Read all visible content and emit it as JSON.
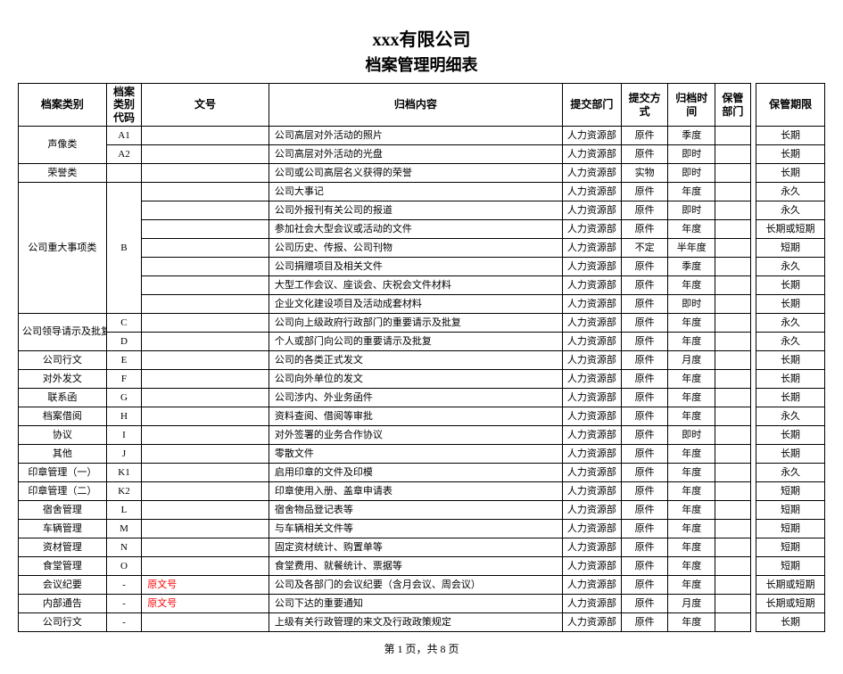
{
  "title": "xxx有限公司",
  "subtitle": "档案管理明细表",
  "headers": {
    "category": "档案类别",
    "code": "档案类别代码",
    "docno": "文号",
    "content": "归档内容",
    "dept": "提交部门",
    "method": "提交方式",
    "time": "归档时间",
    "keep": "保管部门",
    "period": "保管期限"
  },
  "rows": [
    {
      "category": "声像类",
      "cat_rowspan": 2,
      "code": "A1",
      "docno": "",
      "content": "公司高层对外活动的照片",
      "dept": "人力资源部",
      "method": "原件",
      "time": "季度",
      "keep": "",
      "period": "长期"
    },
    {
      "code": "A2",
      "docno": "",
      "content": "公司高层对外活动的光盘",
      "dept": "人力资源部",
      "method": "原件",
      "time": "即时",
      "keep": "",
      "period": "长期"
    },
    {
      "category": "荣誉类",
      "cat_rowspan": 1,
      "code": "",
      "docno": "",
      "content": "公司或公司高层名义获得的荣誉",
      "dept": "人力资源部",
      "method": "实物",
      "time": "即时",
      "keep": "",
      "period": "长期"
    },
    {
      "category": "公司重大事项类",
      "cat_rowspan": 7,
      "code": "B",
      "code_rowspan": 7,
      "docno": "",
      "content": "公司大事记",
      "dept": "人力资源部",
      "method": "原件",
      "time": "年度",
      "keep": "",
      "period": "永久"
    },
    {
      "docno": "",
      "content": "公司外报刊有关公司的报道",
      "dept": "人力资源部",
      "method": "原件",
      "time": "即时",
      "keep": "",
      "period": "永久"
    },
    {
      "docno": "",
      "content": "参加社会大型会议或活动的文件",
      "dept": "人力资源部",
      "method": "原件",
      "time": "年度",
      "keep": "",
      "period": "长期或短期"
    },
    {
      "docno": "",
      "content": "公司历史、传报、公司刊物",
      "dept": "人力资源部",
      "method": "不定",
      "time": "半年度",
      "keep": "",
      "period": "短期"
    },
    {
      "docno": "",
      "content": "公司捐赠项目及相关文件",
      "dept": "人力资源部",
      "method": "原件",
      "time": "季度",
      "keep": "",
      "period": "永久"
    },
    {
      "docno": "",
      "content": "大型工作会议、座谈会、庆祝会文件材料",
      "dept": "人力资源部",
      "method": "原件",
      "time": "年度",
      "keep": "",
      "period": "长期"
    },
    {
      "docno": "",
      "content": "企业文化建设项目及活动成套材料",
      "dept": "人力资源部",
      "method": "原件",
      "time": "即时",
      "keep": "",
      "period": "长期"
    },
    {
      "category": "公司领导请示及批复",
      "cat_rowspan": 2,
      "code": "C",
      "docno": "",
      "content": "公司向上级政府行政部门的重要请示及批复",
      "dept": "人力资源部",
      "method": "原件",
      "time": "年度",
      "keep": "",
      "period": "永久"
    },
    {
      "code": "D",
      "docno": "",
      "content": "个人或部门向公司的重要请示及批复",
      "dept": "人力资源部",
      "method": "原件",
      "time": "年度",
      "keep": "",
      "period": "永久"
    },
    {
      "category": "公司行文",
      "cat_rowspan": 1,
      "code": "E",
      "docno": "",
      "content": "公司的各类正式发文",
      "dept": "人力资源部",
      "method": "原件",
      "time": "月度",
      "keep": "",
      "period": "长期"
    },
    {
      "category": "对外发文",
      "cat_rowspan": 1,
      "code": "F",
      "docno": "",
      "content": "公司向外单位的发文",
      "dept": "人力资源部",
      "method": "原件",
      "time": "年度",
      "keep": "",
      "period": "长期"
    },
    {
      "category": "联系函",
      "cat_rowspan": 1,
      "code": "G",
      "docno": "",
      "content": "公司涉内、外业务函件",
      "dept": "人力资源部",
      "method": "原件",
      "time": "年度",
      "keep": "",
      "period": "长期"
    },
    {
      "category": "档案借阅",
      "cat_rowspan": 1,
      "code": "H",
      "docno": "",
      "content": "资料查阅、借阅等审批",
      "dept": "人力资源部",
      "method": "原件",
      "time": "年度",
      "keep": "",
      "period": "永久"
    },
    {
      "category": "协议",
      "cat_rowspan": 1,
      "code": "I",
      "docno": "",
      "content": "对外签署的业务合作协议",
      "dept": "人力资源部",
      "method": "原件",
      "time": "即时",
      "keep": "",
      "period": "长期"
    },
    {
      "category": "其他",
      "cat_rowspan": 1,
      "code": "J",
      "docno": "",
      "content": "零散文件",
      "dept": "人力资源部",
      "method": "原件",
      "time": "年度",
      "keep": "",
      "period": "长期"
    },
    {
      "category": "印章管理（一）",
      "cat_rowspan": 1,
      "code": "K1",
      "docno": "",
      "content": "启用印章的文件及印模",
      "dept": "人力资源部",
      "method": "原件",
      "time": "年度",
      "keep": "",
      "period": "永久"
    },
    {
      "category": "印章管理（二）",
      "cat_rowspan": 1,
      "code": "K2",
      "docno": "",
      "content": "印章使用入册、盖章申请表",
      "dept": "人力资源部",
      "method": "原件",
      "time": "年度",
      "keep": "",
      "period": "短期"
    },
    {
      "category": "宿舍管理",
      "cat_rowspan": 1,
      "code": "L",
      "docno": "",
      "content": "宿舍物品登记表等",
      "dept": "人力资源部",
      "method": "原件",
      "time": "年度",
      "keep": "",
      "period": "短期"
    },
    {
      "category": "车辆管理",
      "cat_rowspan": 1,
      "code": "M",
      "docno": "",
      "content": "与车辆相关文件等",
      "dept": "人力资源部",
      "method": "原件",
      "time": "年度",
      "keep": "",
      "period": "短期"
    },
    {
      "category": "资材管理",
      "cat_rowspan": 1,
      "code": "N",
      "docno": "",
      "content": "固定资材统计、购置单等",
      "dept": "人力资源部",
      "method": "原件",
      "time": "年度",
      "keep": "",
      "period": "短期"
    },
    {
      "category": "食堂管理",
      "cat_rowspan": 1,
      "code": "O",
      "docno": "",
      "content": "食堂费用、就餐统计、票据等",
      "dept": "人力资源部",
      "method": "原件",
      "time": "年度",
      "keep": "",
      "period": "短期"
    },
    {
      "category": "会议纪要",
      "cat_rowspan": 1,
      "code": "-",
      "docno": "原文号",
      "docno_red": true,
      "content": "公司及各部门的会议纪要（含月会议、周会议）",
      "dept": "人力资源部",
      "method": "原件",
      "time": "年度",
      "keep": "",
      "period": "长期或短期"
    },
    {
      "category": "内部通告",
      "cat_rowspan": 1,
      "code": "-",
      "docno": "原文号",
      "docno_red": true,
      "content": "公司下达的重要通知",
      "dept": "人力资源部",
      "method": "原件",
      "time": "月度",
      "keep": "",
      "period": "长期或短期"
    },
    {
      "category": "公司行文",
      "cat_rowspan": 1,
      "code": "-",
      "docno": "",
      "content": "上级有关行政管理的来文及行政政策规定",
      "dept": "人力资源部",
      "method": "原件",
      "time": "年度",
      "keep": "",
      "period": "长期"
    }
  ],
  "pager": "第 1 页，共 8 页",
  "colors": {
    "red": "#ff0000",
    "border": "#000000",
    "bg": "#ffffff"
  }
}
